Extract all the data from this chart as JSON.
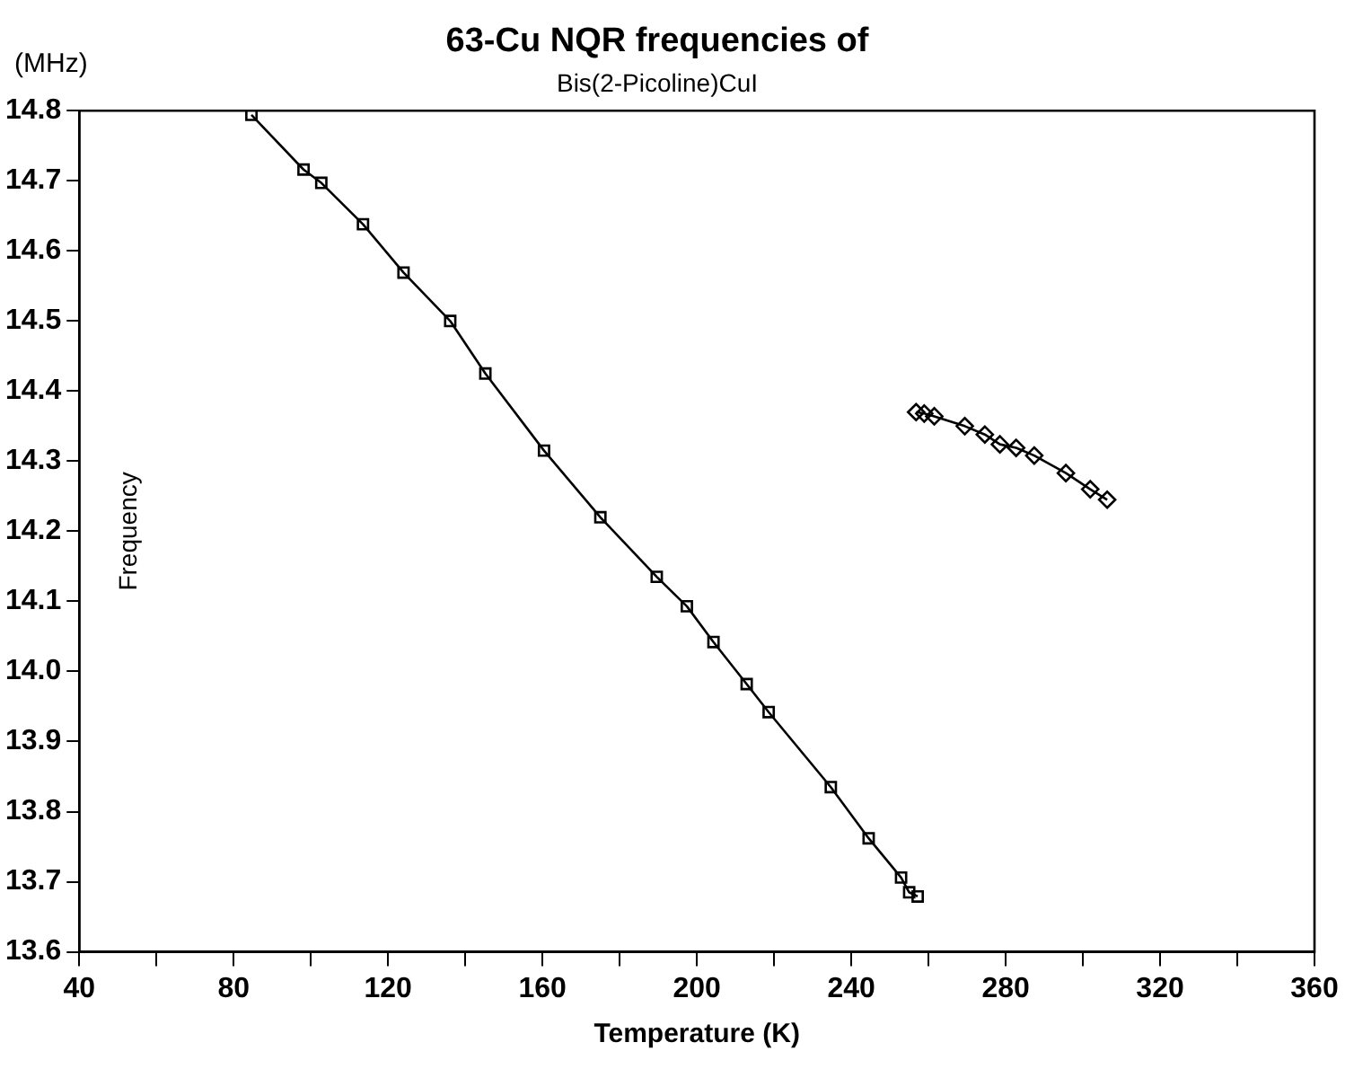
{
  "chart_data": {
    "type": "scatter",
    "title": "63-Cu NQR frequencies of",
    "subtitle": "Bis(2-Picoline)CuI",
    "xlabel": "Temperature (K)",
    "ylabel": "Frequency",
    "annotations": [
      "(MHz)"
    ],
    "xlim": [
      40,
      360
    ],
    "ylim": [
      13.6,
      14.8
    ],
    "xticks": [
      40,
      {
        "value": 60,
        "label": null
      },
      80,
      {
        "value": 100,
        "label": null
      },
      120,
      {
        "value": 140,
        "label": null
      },
      160,
      {
        "value": 180,
        "label": null
      },
      200,
      {
        "value": 220,
        "label": null
      },
      240,
      {
        "value": 260,
        "label": null
      },
      280,
      {
        "value": 300,
        "label": null
      },
      320,
      {
        "value": 340,
        "label": null
      },
      360
    ],
    "yticks": [
      {
        "value": 13.6,
        "label": "13.6"
      },
      {
        "value": 13.7,
        "label": "13.7"
      },
      {
        "value": 13.8,
        "label": "13.8"
      },
      {
        "value": 13.9,
        "label": "13.9"
      },
      {
        "value": 14.0,
        "label": "14.0"
      },
      {
        "value": 14.1,
        "label": "14.1"
      },
      {
        "value": 14.2,
        "label": "14.2"
      },
      {
        "value": 14.3,
        "label": "14.3"
      },
      {
        "value": 14.4,
        "label": "14.4"
      },
      {
        "value": 14.5,
        "label": "14.5"
      },
      {
        "value": 14.6,
        "label": "14.6"
      },
      {
        "value": 14.7,
        "label": "14.7"
      },
      {
        "value": 14.8,
        "label": "14.8"
      }
    ],
    "grid": false,
    "legend": false,
    "series": [
      {
        "type": "line",
        "marker": "square",
        "color": "#000000",
        "x": [
          84.6,
          98.1,
          102.7,
          113.5,
          124.0,
          136.1,
          145.2,
          160.4,
          175.0,
          189.6,
          197.4,
          204.3,
          212.9,
          218.6,
          234.7,
          244.5,
          252.9,
          255.0,
          257.2
        ],
        "values": [
          14.794,
          14.716,
          14.697,
          14.638,
          14.569,
          14.5,
          14.425,
          14.315,
          14.22,
          14.135,
          14.093,
          14.042,
          13.982,
          13.942,
          13.835,
          13.762,
          13.706,
          13.685,
          13.679
        ]
      },
      {
        "type": "line",
        "marker": "diamond",
        "color": "#000000",
        "x": [
          256.8,
          258.9,
          261.5,
          269.4,
          274.6,
          278.5,
          282.7,
          287.4,
          295.6,
          301.9,
          306.3
        ],
        "values": [
          14.37,
          14.368,
          14.364,
          14.35,
          14.338,
          14.324,
          14.319,
          14.308,
          14.283,
          14.26,
          14.245
        ]
      }
    ]
  }
}
